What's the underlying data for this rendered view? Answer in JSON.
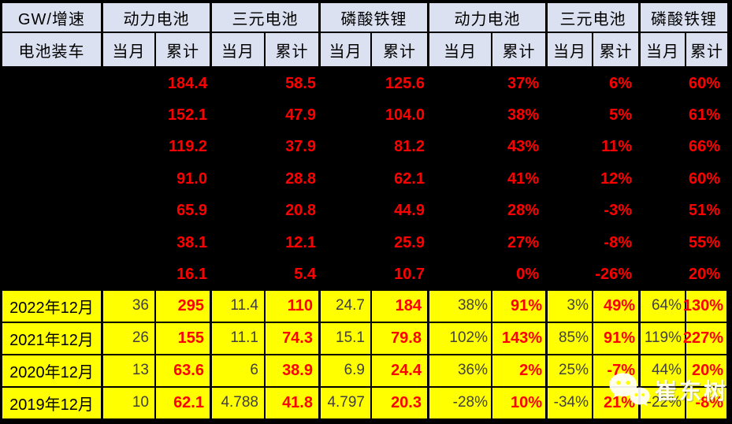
{
  "chart_data": {
    "type": "table",
    "corner": {
      "top": "GW/增速",
      "bottom": "电池装车"
    },
    "group_headers": [
      "动力电池",
      "三元电池",
      "磷酸铁锂",
      "动力电池",
      "三元电池",
      "磷酸铁锂"
    ],
    "sub_headers": [
      "当月",
      "累计",
      "当月",
      "累计",
      "当月",
      "累计",
      "当月",
      "累计",
      "当月",
      "累计",
      "当月",
      "累计"
    ],
    "cumulative_only_rows": [
      [
        "184.4",
        "58.5",
        "125.6",
        "37%",
        "6%",
        "60%"
      ],
      [
        "152.1",
        "47.9",
        "104.0",
        "38%",
        "5%",
        "61%"
      ],
      [
        "119.2",
        "37.9",
        "81.2",
        "43%",
        "11%",
        "66%"
      ],
      [
        "91.0",
        "28.8",
        "62.1",
        "41%",
        "12%",
        "60%"
      ],
      [
        "65.9",
        "20.8",
        "44.9",
        "28%",
        "-3%",
        "51%"
      ],
      [
        "38.1",
        "12.1",
        "25.9",
        "27%",
        "-8%",
        "55%"
      ],
      [
        "16.1",
        "5.4",
        "10.7",
        "0%",
        "-26%",
        "20%"
      ]
    ],
    "month_rows": [
      {
        "label": "2022年12月",
        "values": [
          "36",
          "295",
          "11.4",
          "110",
          "24.7",
          "184",
          "38%",
          "91%",
          "3%",
          "49%",
          "64%",
          "130%"
        ]
      },
      {
        "label": "2021年12月",
        "values": [
          "26",
          "155",
          "11.1",
          "74.3",
          "15.1",
          "79.8",
          "102%",
          "143%",
          "85%",
          "91%",
          "119%",
          "227%"
        ]
      },
      {
        "label": "2020年12月",
        "values": [
          "13",
          "63.6",
          "6",
          "38.9",
          "6.9",
          "24.4",
          "36%",
          "2%",
          "25%",
          "-7%",
          "44%",
          "20%"
        ]
      },
      {
        "label": "2019年12月",
        "values": [
          "10",
          "62.1",
          "4.788",
          "41.8",
          "4.797",
          "20.3",
          "-28%",
          "10%",
          "-34%",
          "21%",
          "-22%",
          "-8%"
        ]
      }
    ],
    "colors": {
      "header_bg": "#dbe1f0",
      "row_bg": "#ffff00",
      "section_bg": "#000000",
      "accent_red": "#ff0000",
      "dark_text": "#404040"
    }
  },
  "watermark": {
    "label": "崔东树",
    "icon": "wechat-icon"
  }
}
